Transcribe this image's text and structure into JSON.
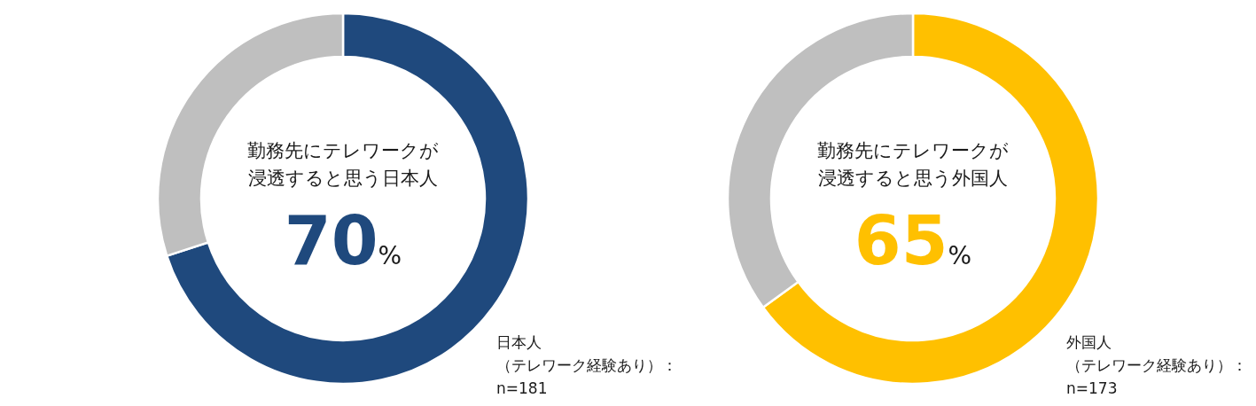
{
  "chart_data": [
    {
      "type": "donut",
      "title": "勤務先にテレワークが浸透すると思う日本人",
      "categories": [
        null,
        null
      ],
      "values": [
        70,
        30
      ],
      "colors": [
        "#1f497d",
        "#bfbfbf"
      ],
      "value_labels": [
        "70%",
        null
      ],
      "annotations": [
        "日本人",
        "（テレワーク経験あり）：",
        "n=181"
      ]
    },
    {
      "type": "donut",
      "title": "勤務先にテレワークが浸透すると思う外国人",
      "categories": [
        null,
        null
      ],
      "values": [
        65,
        35
      ],
      "colors": [
        "#ffc000",
        "#bfbfbf"
      ],
      "value_labels": [
        "65%",
        null
      ],
      "annotations": [
        "外国人",
        "（テレワーク経験あり）：",
        "n=173"
      ]
    }
  ]
}
